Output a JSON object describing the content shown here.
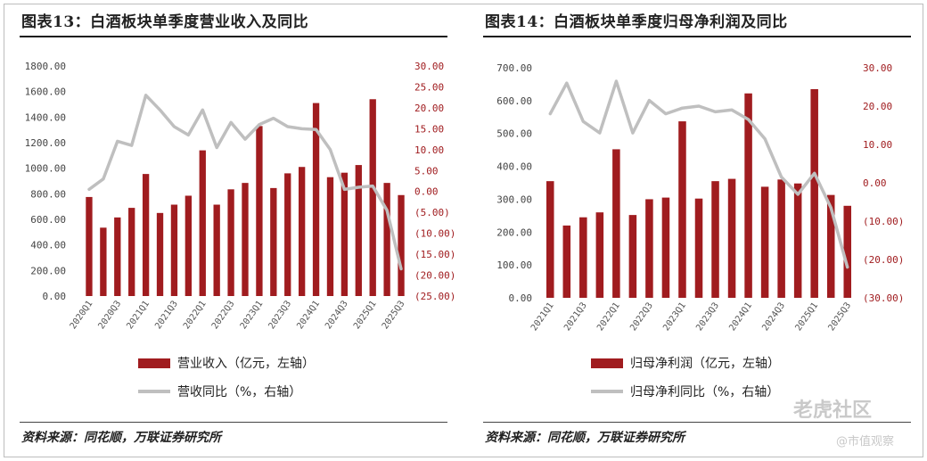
{
  "colors": {
    "bar": "#a01c1f",
    "line": "#bfbfbf",
    "right_axis_text": "#a01c1f",
    "left_axis_text": "#444444"
  },
  "chart_data": [
    {
      "type": "bar+line",
      "title": "图表13：白酒板块单季度营业收入及同比",
      "source": "资料来源：同花顺，万联证券研究所",
      "categories": [
        "2020Q1",
        "2020Q2",
        "2020Q3",
        "2020Q4",
        "2021Q1",
        "2021Q2",
        "2021Q3",
        "2021Q4",
        "2022Q1",
        "2022Q2",
        "2022Q3",
        "2022Q4",
        "2023Q1",
        "2023Q2",
        "2023Q3",
        "2023Q4",
        "2024Q1",
        "2024Q2",
        "2024Q3",
        "2024Q4",
        "2025Q1",
        "2025Q2",
        "2025Q3"
      ],
      "x_tick_labels": [
        "2020Q1",
        "",
        "2020Q3",
        "",
        "2021Q1",
        "",
        "2021Q3",
        "",
        "2022Q1",
        "",
        "2022Q3",
        "",
        "2023Q1",
        "",
        "2023Q3",
        "",
        "2024Q1",
        "",
        "2024Q3",
        "",
        "2025Q1",
        "",
        "2025Q3"
      ],
      "series": [
        {
          "name": "营业收入（亿元，左轴）",
          "type": "bar",
          "axis": "left",
          "values": [
            775,
            535,
            615,
            690,
            955,
            650,
            715,
            785,
            1140,
            715,
            835,
            885,
            1330,
            845,
            960,
            1010,
            1510,
            930,
            965,
            1025,
            1540,
            885,
            790
          ]
        },
        {
          "name": "营收同比（%，右轴）",
          "type": "line",
          "axis": "right",
          "values": [
            0.5,
            3.0,
            12.0,
            11.0,
            23.0,
            19.5,
            15.5,
            13.5,
            19.5,
            10.5,
            16.5,
            12.5,
            16.0,
            17.5,
            15.5,
            15.0,
            14.8,
            10.0,
            0.5,
            1.0,
            1.3,
            -4.5,
            -18.5
          ]
        }
      ],
      "y_left": {
        "range": [
          0,
          1800
        ],
        "ticks": [
          "0.00",
          "200.00",
          "400.00",
          "600.00",
          "800.00",
          "1000.00",
          "1200.00",
          "1400.00",
          "1600.00",
          "1800.00"
        ]
      },
      "y_right": {
        "range": [
          -25,
          30
        ],
        "ticks": [
          "(25.00)",
          "(20.00)",
          "(15.00)",
          "(10.00)",
          "(5.00)",
          "0.00",
          "5.00",
          "10.00",
          "15.00",
          "20.00",
          "25.00",
          "30.00"
        ]
      },
      "legend_position": "bottom"
    },
    {
      "type": "bar+line",
      "title": "图表14：白酒板块单季度归母净利润及同比",
      "source": "资料来源：同花顺，万联证券研究所",
      "categories": [
        "2021Q1",
        "2021Q2",
        "2021Q3",
        "2021Q4",
        "2022Q1",
        "2022Q2",
        "2022Q3",
        "2022Q4",
        "2023Q1",
        "2023Q2",
        "2023Q3",
        "2023Q4",
        "2024Q1",
        "2024Q2",
        "2024Q3",
        "2024Q4",
        "2025Q1",
        "2025Q2",
        "2025Q3"
      ],
      "x_tick_labels": [
        "2021Q1",
        "",
        "2021Q3",
        "",
        "2022Q1",
        "",
        "2022Q3",
        "",
        "2023Q1",
        "",
        "2023Q3",
        "",
        "2024Q1",
        "",
        "2024Q3",
        "",
        "2025Q1",
        "",
        "2025Q3"
      ],
      "series": [
        {
          "name": "归母净利润（亿元，左轴）",
          "type": "bar",
          "axis": "left",
          "values": [
            355,
            220,
            245,
            260,
            452,
            252,
            300,
            305,
            537,
            302,
            355,
            362,
            622,
            338,
            360,
            348,
            635,
            313,
            280
          ]
        },
        {
          "name": "归母净利同比（%，右轴）",
          "type": "line",
          "axis": "right",
          "values": [
            18,
            26,
            16,
            13,
            26.5,
            13,
            21.5,
            18,
            19.5,
            20,
            18.5,
            19,
            16.5,
            11.5,
            1.5,
            -3,
            2.5,
            -6.5,
            -22
          ]
        }
      ],
      "y_left": {
        "range": [
          0,
          700
        ],
        "ticks": [
          "0.00",
          "100.00",
          "200.00",
          "300.00",
          "400.00",
          "500.00",
          "600.00",
          "700.00"
        ]
      },
      "y_right": {
        "range": [
          -30,
          30
        ],
        "ticks": [
          "(30.00)",
          "(20.00)",
          "(10.00)",
          "0.00",
          "10.00",
          "20.00",
          "30.00"
        ]
      },
      "legend_position": "bottom"
    }
  ],
  "watermark": {
    "brand": "老虎社区",
    "sub": "@市值观察"
  }
}
